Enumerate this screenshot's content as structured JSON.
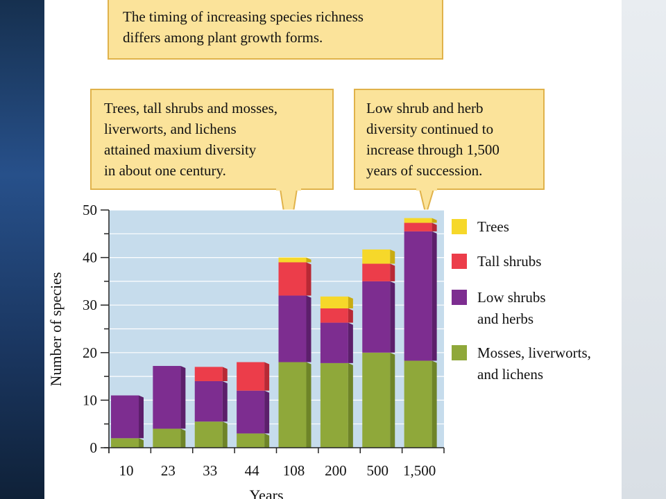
{
  "callouts": {
    "top": "The timing of increasing species richness\ndiffers among plant growth forms.",
    "left": "Trees, tall shrubs and mosses,\nliverworts, and lichens\nattained maxium diversity\nin about one century.",
    "right": "Low shrub and herb\ndiversity continued to\nincrease through 1,500\nyears of succession."
  },
  "colors": {
    "plot_bg": "#c6dcec",
    "callout_fill": "#fbe39a",
    "callout_border": "#e0b24a"
  },
  "chart_data": {
    "type": "bar",
    "stacked": true,
    "xlabel": "Years",
    "ylabel": "Number of species",
    "ylim": [
      0,
      50
    ],
    "yticks": [
      0,
      10,
      20,
      30,
      40,
      50
    ],
    "categories": [
      "10",
      "23",
      "33",
      "44",
      "108",
      "200",
      "500",
      "1,500"
    ],
    "grid": true,
    "legend_position": "right",
    "series": [
      {
        "name": "Mosses, liverworts,\n and lichens",
        "color": "#8fa83a",
        "side": "#6e8428",
        "values": [
          2,
          4,
          5.5,
          3,
          18,
          17.8,
          20,
          18.3
        ]
      },
      {
        "name": "Low shrubs\nand herbs",
        "color": "#7d2d90",
        "side": "#5c1f6b",
        "values": [
          9,
          13.2,
          8.5,
          9,
          14,
          8.5,
          15,
          27.2
        ]
      },
      {
        "name": "Tall shrubs",
        "color": "#ec3d4a",
        "side": "#b82935",
        "values": [
          0,
          0,
          3,
          6,
          7,
          3,
          3.7,
          1.8
        ]
      },
      {
        "name": "Trees",
        "color": "#f6d82a",
        "side": "#c9ac12",
        "values": [
          0,
          0,
          0,
          0,
          1,
          2.5,
          3,
          1
        ]
      }
    ]
  }
}
